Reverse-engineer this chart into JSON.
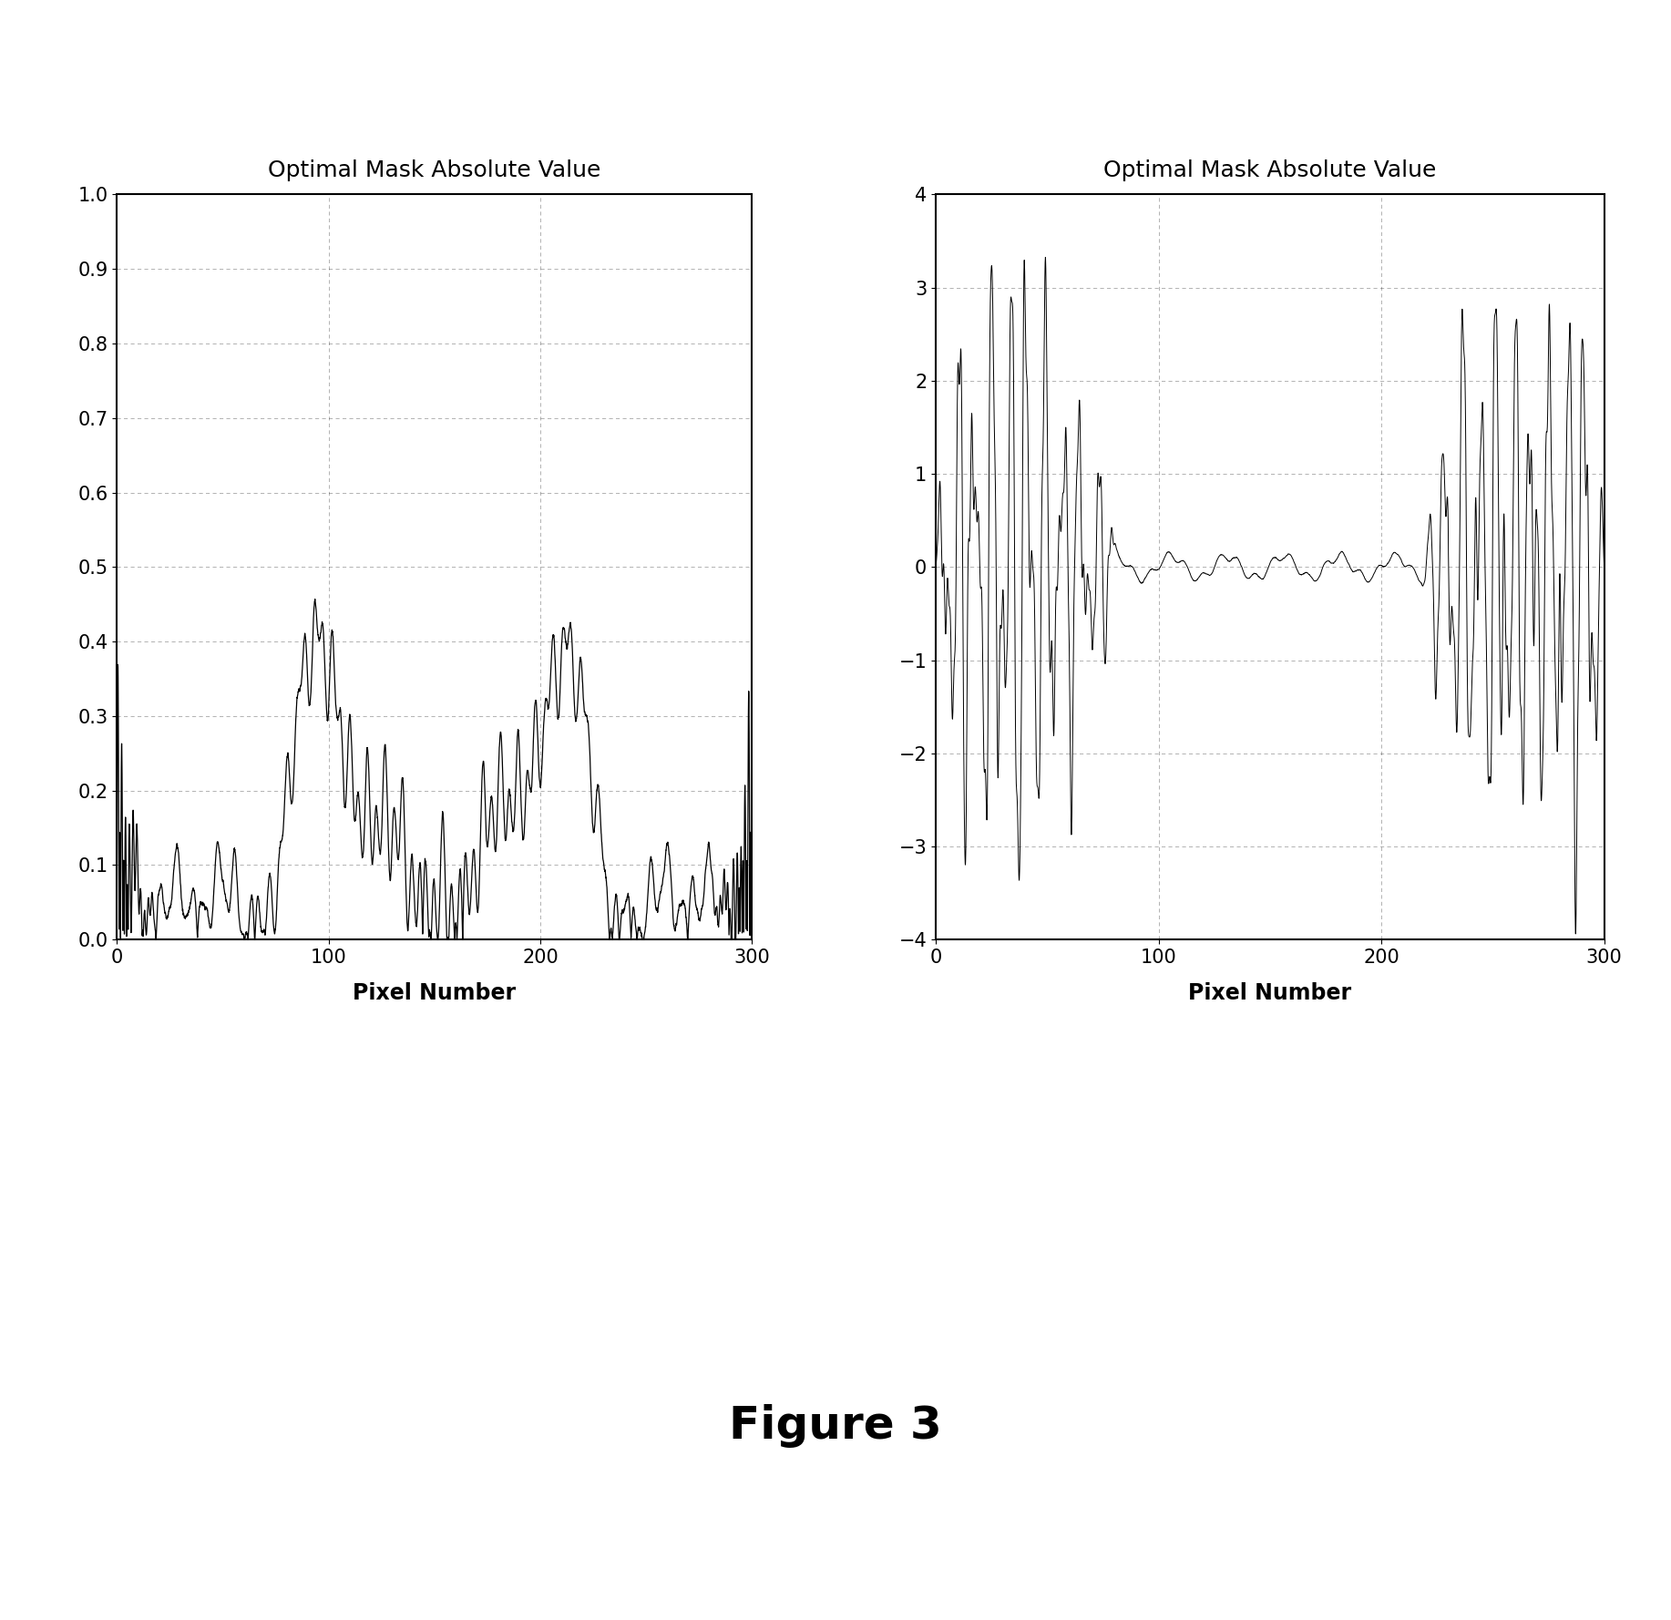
{
  "title1": "Optimal Mask Absolute Value",
  "title2": "Optimal Mask Absolute Value",
  "xlabel": "Pixel Number",
  "ylabel1_ticks": [
    0,
    0.1,
    0.2,
    0.3,
    0.4,
    0.5,
    0.6,
    0.7,
    0.8,
    0.9,
    1.0
  ],
  "ylabel2_ticks": [
    -4,
    -3,
    -2,
    -1,
    0,
    1,
    2,
    3,
    4
  ],
  "xlim": [
    0,
    300
  ],
  "ylim1": [
    0,
    1.0
  ],
  "ylim2": [
    -4,
    4
  ],
  "xticks": [
    0,
    100,
    200,
    300
  ],
  "figure_caption": "Figure 3",
  "background_color": "#ffffff",
  "line_color": "#000000",
  "title_fontsize": 18,
  "label_fontsize": 17,
  "tick_fontsize": 15,
  "caption_fontsize": 36
}
